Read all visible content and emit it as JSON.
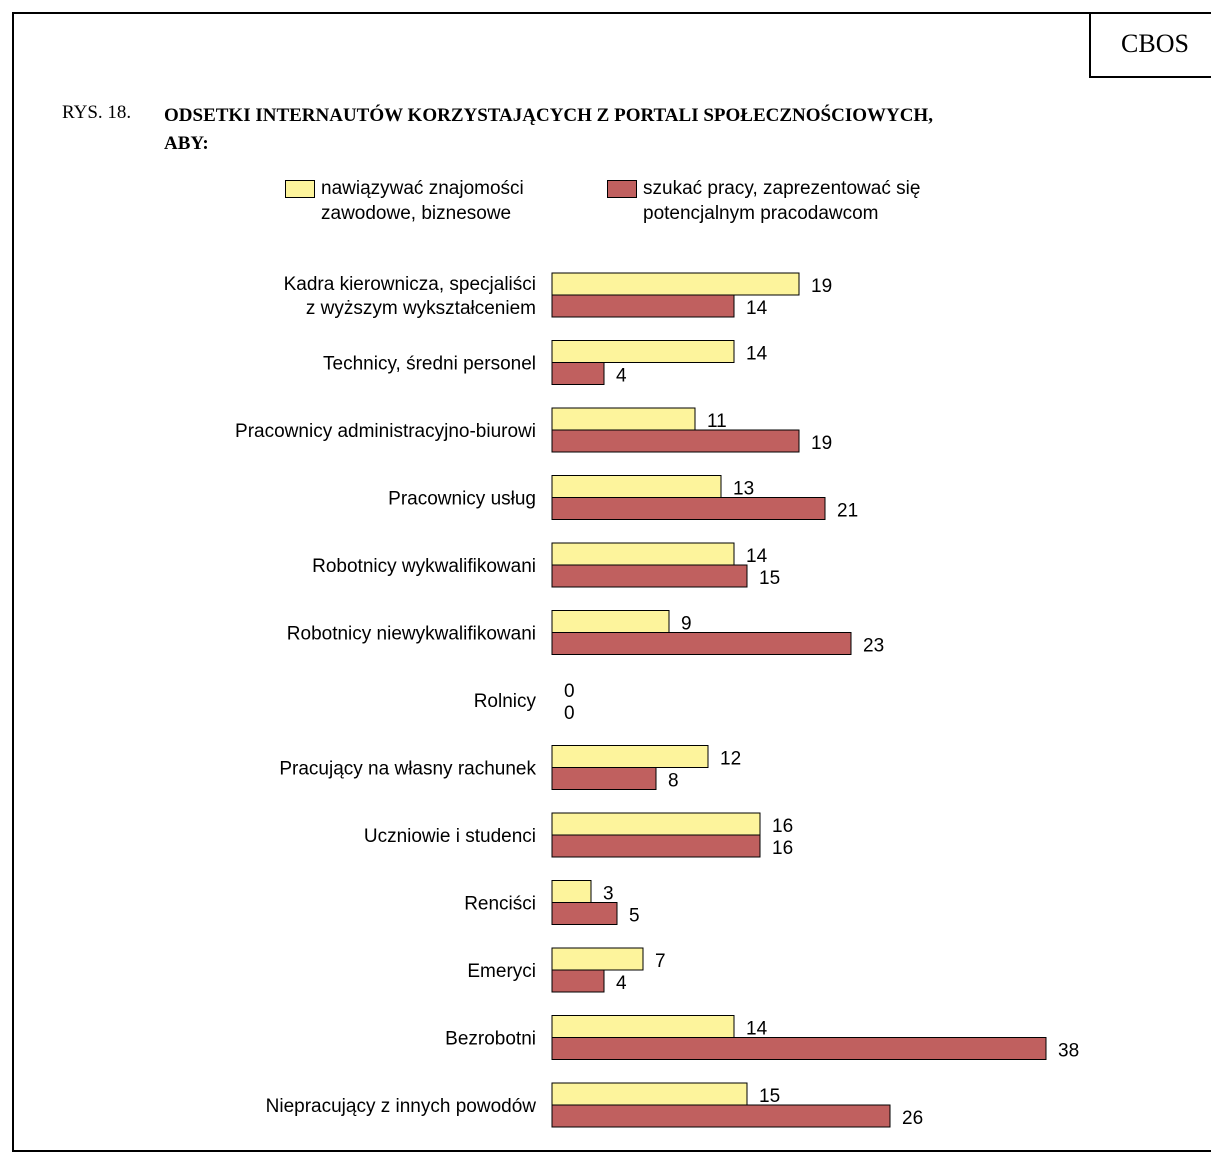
{
  "header": {
    "brand": "CBOS",
    "figure_label": "RYS. 18.",
    "title_line1": "ODSETKI INTERNAUTÓW KORZYSTAJĄCYCH Z PORTALI SPOŁECZNOŚCIOWYCH,",
    "title_line2": "ABY:"
  },
  "legend": {
    "series1_line1": "nawiązywać znajomości",
    "series1_line2": "zawodowe, biznesowe",
    "series2_line1": "szukać pracy, zaprezentować się",
    "series2_line2": "potencjalnym pracodawcom"
  },
  "chart_data": {
    "type": "bar",
    "orientation": "horizontal",
    "title": "ODSETKI INTERNAUTÓW KORZYSTAJĄCYCH Z PORTALI SPOŁECZNOŚCIOWYCH, ABY:",
    "categories": [
      [
        "Kadra kierownicza, specjaliści",
        "z wyższym wykształceniem"
      ],
      [
        "Technicy, średni personel"
      ],
      [
        "Pracownicy administracyjno-biurowi"
      ],
      [
        "Pracownicy usług"
      ],
      [
        "Robotnicy wykwalifikowani"
      ],
      [
        "Robotnicy niewykwalifikowani"
      ],
      [
        "Rolnicy"
      ],
      [
        "Pracujący na własny rachunek"
      ],
      [
        "Uczniowie i studenci"
      ],
      [
        "Renciści"
      ],
      [
        "Emeryci"
      ],
      [
        "Bezrobotni"
      ],
      [
        "Niepracujący z innych powodów"
      ]
    ],
    "series": [
      {
        "name": "nawiązywać znajomości zawodowe, biznesowe",
        "color": "#fdf49c",
        "values": [
          19,
          14,
          11,
          13,
          14,
          9,
          0,
          12,
          16,
          3,
          7,
          14,
          15
        ]
      },
      {
        "name": "szukać pracy, zaprezentować się potencjalnym pracodawcom",
        "color": "#c0605f",
        "values": [
          14,
          4,
          19,
          21,
          15,
          23,
          0,
          8,
          16,
          5,
          4,
          38,
          26
        ]
      }
    ],
    "xlim": [
      0,
      38
    ],
    "grid": false,
    "legend_position": "top",
    "data_labels": true
  }
}
